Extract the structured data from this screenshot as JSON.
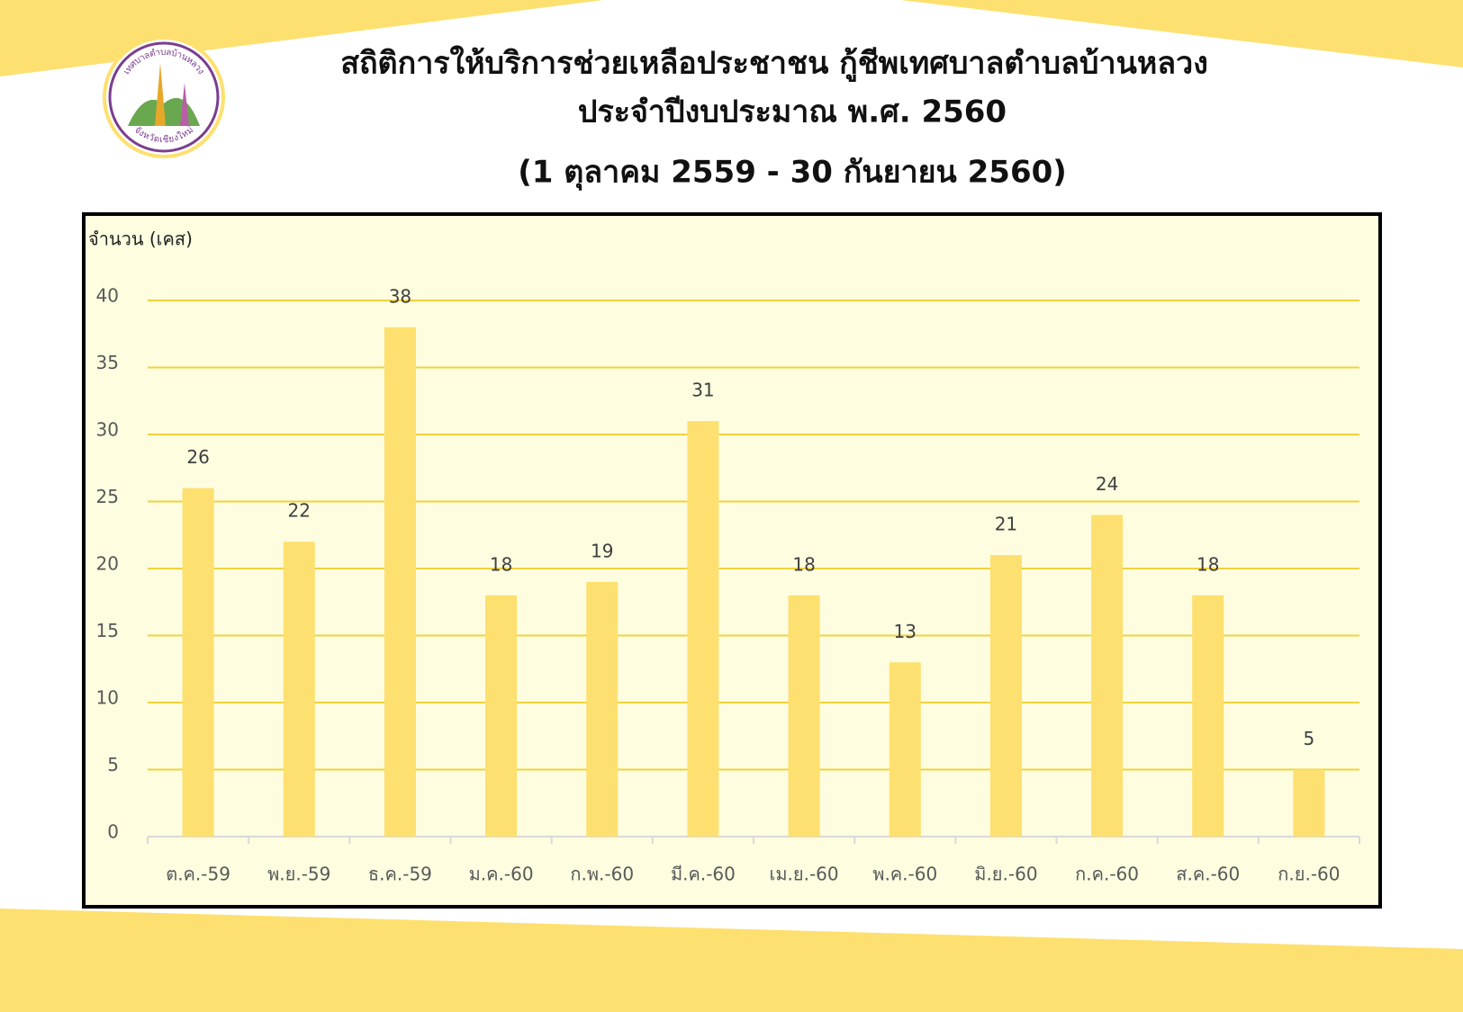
{
  "logo": {
    "top": "เทศบาลตำบลบ้านหลวง",
    "bottom": "จังหวัดเชียงใหม่"
  },
  "chart_data": {
    "type": "bar",
    "title": [
      "สถิติการให้บริการช่วยเหลือประชาชน กู้ชีพเทศบาลตำบลบ้านหลวง",
      "ประจำปีงบประมาณ พ.ศ. 2560"
    ],
    "subtitle": "(1 ตุลาคม 2559 - 30 กันยายน 2560)",
    "y_label": "จำนวน (เคส)",
    "categories": [
      "ต.ค.-59",
      "พ.ย.-59",
      "ธ.ค.-59",
      "ม.ค.-60",
      "ก.พ.-60",
      "มี.ค.-60",
      "เม.ย.-60",
      "พ.ค.-60",
      "มิ.ย.-60",
      "ก.ค.-60",
      "ส.ค.-60",
      "ก.ย.-60"
    ],
    "values": [
      26,
      22,
      38,
      18,
      19,
      31,
      18,
      13,
      21,
      24,
      18,
      5
    ],
    "color": "#fde06f",
    "grid_color": "#f0d23a",
    "ylim": [
      0,
      40
    ],
    "yticks": [
      0,
      5,
      10,
      15,
      20,
      25,
      30,
      35,
      40
    ],
    "grid": true
  }
}
